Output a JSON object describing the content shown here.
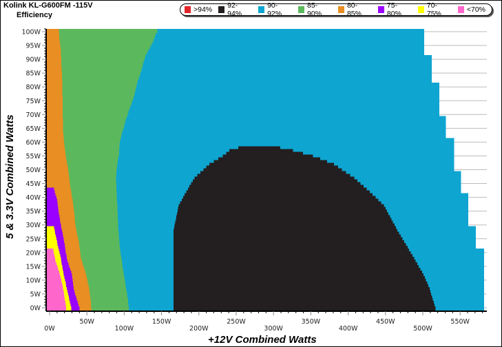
{
  "header": {
    "title": "Kolink KL-G600FM -115V",
    "subtitle": "Efficiency"
  },
  "legend": [
    {
      "label": ">94%",
      "color": "#e0262b"
    },
    {
      "label": "92-94%",
      "color": "#231f20"
    },
    {
      "label": "90-92%",
      "color": "#0ea5d1"
    },
    {
      "label": "85-90%",
      "color": "#5cb85c"
    },
    {
      "label": "80-85%",
      "color": "#e88e22"
    },
    {
      "label": "75-80%",
      "color": "#9900ff"
    },
    {
      "label": "70-75%",
      "color": "#ffff00"
    },
    {
      "label": "<70%",
      "color": "#ff66cc"
    }
  ],
  "chart_data": {
    "type": "heatmap",
    "title": "Efficiency",
    "xlabel": "+12V Combined Watts",
    "ylabel": "5 & 3.3V Combined Watts",
    "xlim": [
      -5,
      586
    ],
    "ylim": [
      -1,
      101
    ],
    "xticks": [
      "0W",
      "50W",
      "100W",
      "150W",
      "200W",
      "250W",
      "300W",
      "350W",
      "400W",
      "450W",
      "500W",
      "550W"
    ],
    "xtick_values": [
      0,
      50,
      100,
      150,
      200,
      250,
      300,
      350,
      400,
      450,
      500,
      550
    ],
    "yticks": [
      "0W",
      "5W",
      "10W",
      "15W",
      "20W",
      "25W",
      "30W",
      "35W",
      "40W",
      "45W",
      "50W",
      "55W",
      "60W",
      "65W",
      "70W",
      "75W",
      "80W",
      "85W",
      "90W",
      "95W",
      "100W"
    ],
    "ytick_values": [
      0,
      5,
      10,
      15,
      20,
      25,
      30,
      35,
      40,
      45,
      50,
      55,
      60,
      65,
      70,
      75,
      80,
      85,
      90,
      95,
      100
    ],
    "regions": [
      {
        "band": "85-90%",
        "color": "#5cb85c",
        "left": [
          [
            0,
            -5
          ],
          [
            101,
            -5
          ]
        ],
        "right": [
          [
            0,
            106
          ],
          [
            3,
            105
          ],
          [
            8,
            102
          ],
          [
            13,
            99
          ],
          [
            22,
            94
          ],
          [
            29,
            92
          ],
          [
            47,
            89
          ],
          [
            50,
            90
          ],
          [
            56,
            93
          ],
          [
            60,
            94
          ],
          [
            64,
            98
          ],
          [
            68,
            102
          ],
          [
            72,
            107
          ],
          [
            76.5,
            113
          ],
          [
            81,
            117
          ],
          [
            85,
            122
          ],
          [
            88,
            125
          ],
          [
            91.5,
            129
          ],
          [
            94,
            134
          ],
          [
            96.5,
            139
          ],
          [
            99,
            142
          ],
          [
            101,
            147
          ]
        ]
      },
      {
        "band": "90-92%",
        "color": "#0ea5d1",
        "left": [
          [
            0,
            106
          ],
          [
            3,
            105
          ],
          [
            8,
            102
          ],
          [
            13,
            99
          ],
          [
            22,
            94
          ],
          [
            29,
            92
          ],
          [
            47,
            89
          ],
          [
            50,
            90
          ],
          [
            56,
            93
          ],
          [
            60,
            94
          ],
          [
            64,
            98
          ],
          [
            68,
            102
          ],
          [
            72,
            107
          ],
          [
            76.5,
            113
          ],
          [
            81,
            117
          ],
          [
            85,
            122
          ],
          [
            88,
            125
          ],
          [
            91.5,
            129
          ],
          [
            94,
            134
          ],
          [
            96.5,
            139
          ],
          [
            99,
            142
          ],
          [
            101,
            147
          ]
        ],
        "right": [
          [
            0,
            582
          ],
          [
            21,
            582
          ],
          [
            21.01,
            571
          ],
          [
            29,
            571
          ],
          [
            29.01,
            561
          ],
          [
            41,
            561
          ],
          [
            41.01,
            551
          ],
          [
            49,
            551
          ],
          [
            49.01,
            542
          ],
          [
            61,
            542
          ],
          [
            61.01,
            531
          ],
          [
            69,
            531
          ],
          [
            69.01,
            522
          ],
          [
            81,
            522
          ],
          [
            81.01,
            512
          ],
          [
            91,
            512
          ],
          [
            91.01,
            502
          ],
          [
            101,
            502
          ]
        ]
      },
      {
        "band": "80-85%",
        "color": "#e88e22",
        "left": [
          [
            0,
            -5
          ],
          [
            101,
            -5
          ]
        ],
        "right": [
          [
            0,
            56
          ],
          [
            7,
            53
          ],
          [
            12,
            49
          ],
          [
            18,
            42
          ],
          [
            24,
            39
          ],
          [
            29,
            35
          ],
          [
            37,
            32
          ],
          [
            45,
            27
          ],
          [
            50,
            25
          ],
          [
            56,
            21
          ],
          [
            64,
            18
          ],
          [
            81.5,
            17
          ],
          [
            93,
            15
          ],
          [
            101,
            12
          ]
        ]
      },
      {
        "band": "75-80%",
        "color": "#9900ff",
        "left": [
          [
            0,
            -5
          ],
          [
            43,
            -5
          ]
        ],
        "right": [
          [
            0,
            40
          ],
          [
            6,
            33
          ],
          [
            12,
            30
          ],
          [
            18,
            23
          ],
          [
            25,
            19
          ],
          [
            30,
            15
          ],
          [
            35,
            12
          ],
          [
            39,
            10
          ],
          [
            43,
            6
          ]
        ]
      },
      {
        "band": "70-75%",
        "color": "#ffff00",
        "left": [
          [
            0,
            -5
          ],
          [
            29,
            -5
          ]
        ],
        "right": [
          [
            0,
            29
          ],
          [
            6,
            24
          ],
          [
            12,
            19
          ],
          [
            18,
            15
          ],
          [
            24,
            10
          ],
          [
            29,
            6
          ]
        ]
      },
      {
        "band": "<70%",
        "color": "#ff66cc",
        "left": [
          [
            0,
            -5
          ],
          [
            21,
            -5
          ]
        ],
        "right": [
          [
            0,
            22
          ],
          [
            6,
            19
          ],
          [
            12,
            14
          ],
          [
            17,
            8
          ],
          [
            21,
            5
          ]
        ]
      },
      {
        "band": "92-94%",
        "color": "#231f20",
        "left": [
          [
            0,
            166
          ],
          [
            28,
            166
          ],
          [
            37,
            173
          ],
          [
            39,
            177
          ],
          [
            42,
            183
          ],
          [
            47,
            194
          ],
          [
            49,
            202
          ],
          [
            52,
            214
          ],
          [
            55,
            232
          ],
          [
            57,
            241
          ],
          [
            58.6,
            260
          ]
        ],
        "right": [
          [
            0,
            517
          ],
          [
            7,
            509
          ],
          [
            12,
            501
          ],
          [
            20,
            484
          ],
          [
            28,
            466
          ],
          [
            37,
            448
          ],
          [
            42,
            429
          ],
          [
            47,
            408
          ],
          [
            52,
            381
          ],
          [
            55,
            353
          ],
          [
            57,
            326
          ],
          [
            58.6,
            299
          ]
        ]
      }
    ]
  }
}
